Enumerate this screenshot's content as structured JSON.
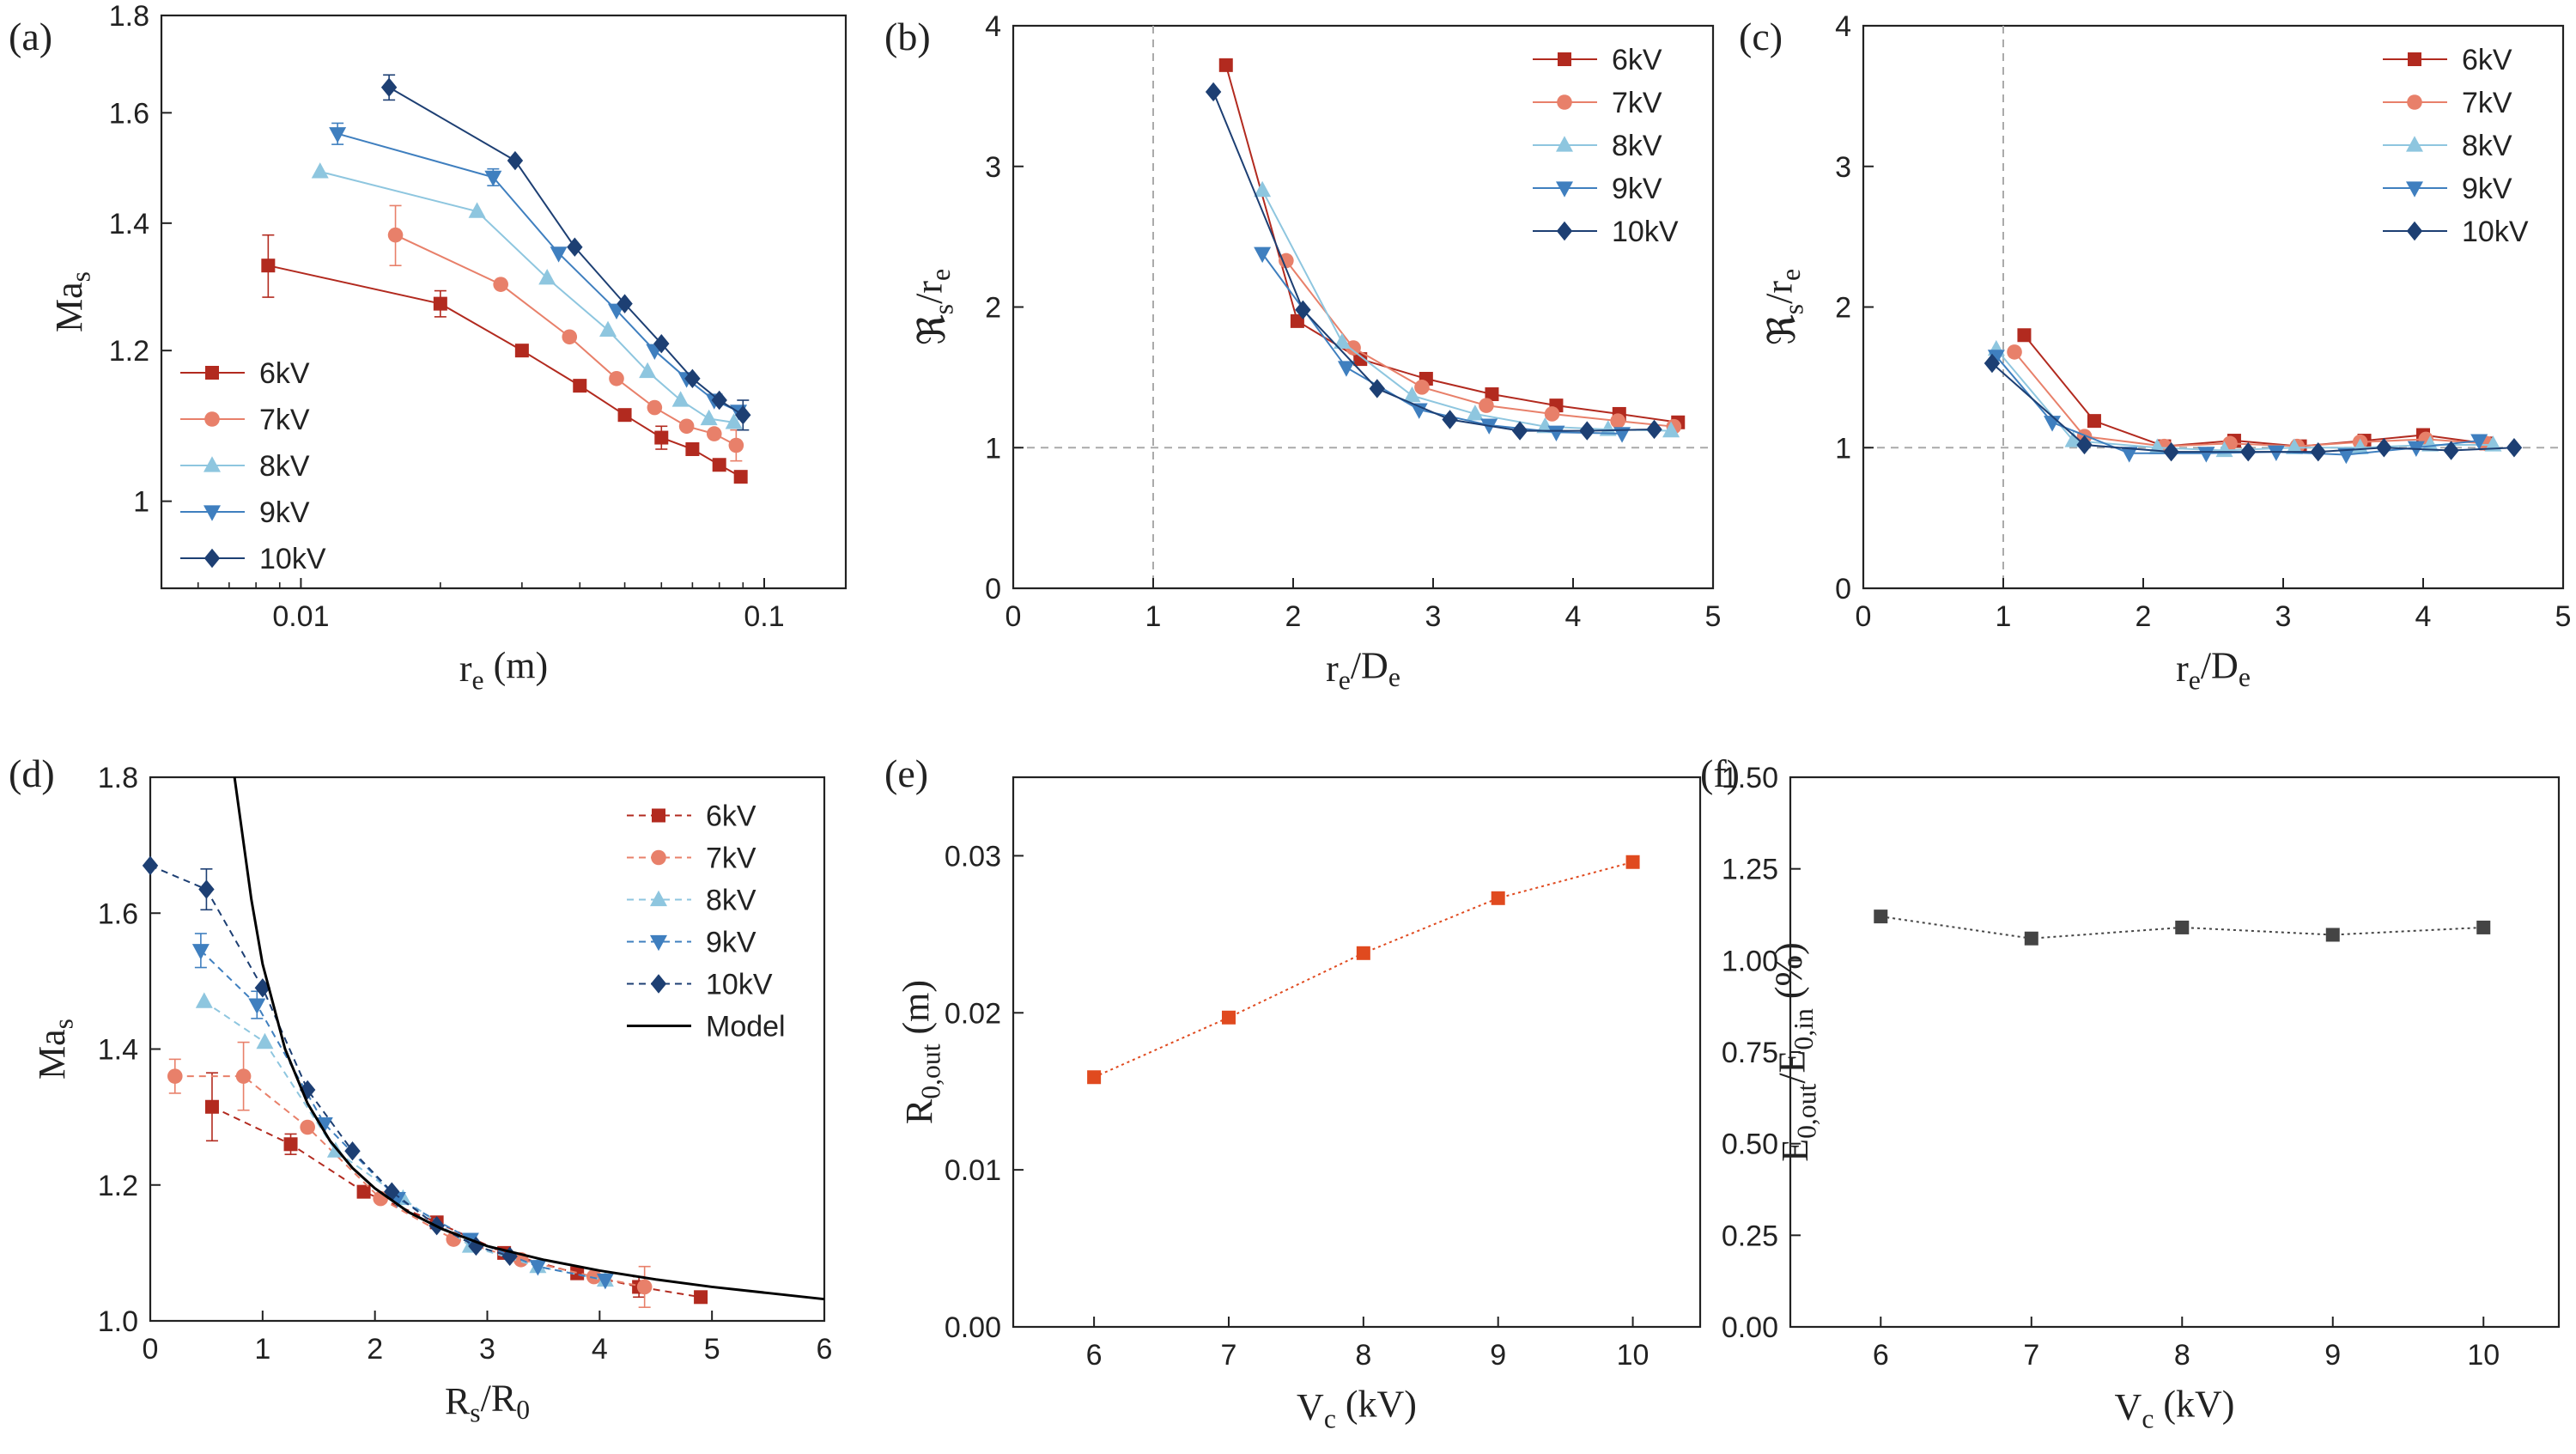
{
  "colors": {
    "6kV": "#b22a1f",
    "7kV": "#e8806a",
    "8kV": "#8ec6df",
    "9kV": "#3f7fbf",
    "10kV": "#1d3f73",
    "Model": "#000000",
    "E": "#e04a1f",
    "F": "#444444",
    "refline": "#aaaaaa"
  },
  "chart_data": [
    {
      "panel": "(a)",
      "type": "line",
      "xlabel": "r_e (m)",
      "ylabel": "Ma_s",
      "xscale": "log",
      "yscale": "log",
      "xlim": [
        0.005,
        0.15
      ],
      "ylim": [
        0.9,
        1.8
      ],
      "xticks": [
        0.01,
        0.1
      ],
      "xticklabels": [
        "0.01",
        "0.1"
      ],
      "yticks": [
        1.0,
        1.2,
        1.4,
        1.6,
        1.8
      ],
      "yticklabels": [
        "1",
        "1.2",
        "1.4",
        "1.6",
        "1.8"
      ],
      "legend": "bottom-left",
      "series": [
        {
          "name": "6kV",
          "marker": "square",
          "x": [
            0.0085,
            0.02,
            0.03,
            0.04,
            0.05,
            0.06,
            0.07,
            0.08,
            0.089
          ],
          "y": [
            1.33,
            1.27,
            1.2,
            1.15,
            1.11,
            1.08,
            1.065,
            1.045,
            1.03
          ],
          "err": [
            0.05,
            0.02,
            0,
            0,
            0,
            0.015,
            0,
            0,
            0
          ]
        },
        {
          "name": "7kV",
          "marker": "circle",
          "x": [
            0.016,
            0.027,
            0.038,
            0.048,
            0.058,
            0.068,
            0.078,
            0.087
          ],
          "y": [
            1.38,
            1.3,
            1.22,
            1.16,
            1.12,
            1.095,
            1.085,
            1.07
          ],
          "err": [
            0.05,
            0,
            0,
            0,
            0,
            0,
            0,
            0.02
          ]
        },
        {
          "name": "8kV",
          "marker": "triangle-up",
          "x": [
            0.011,
            0.024,
            0.034,
            0.046,
            0.056,
            0.066,
            0.076,
            0.086
          ],
          "y": [
            1.49,
            1.42,
            1.31,
            1.23,
            1.17,
            1.13,
            1.105,
            1.1
          ],
          "err": [
            0,
            0,
            0,
            0,
            0,
            0,
            0,
            0
          ]
        },
        {
          "name": "9kV",
          "marker": "triangle-down",
          "x": [
            0.012,
            0.026,
            0.036,
            0.048,
            0.058,
            0.068,
            0.078,
            0.088
          ],
          "y": [
            1.56,
            1.48,
            1.35,
            1.26,
            1.2,
            1.16,
            1.13,
            1.115
          ],
          "err": [
            0.02,
            0.015,
            0,
            0,
            0,
            0,
            0,
            0
          ]
        },
        {
          "name": "10kV",
          "marker": "diamond",
          "x": [
            0.0155,
            0.029,
            0.039,
            0.05,
            0.06,
            0.07,
            0.08,
            0.09
          ],
          "y": [
            1.65,
            1.51,
            1.36,
            1.27,
            1.21,
            1.16,
            1.13,
            1.11
          ],
          "err": [
            0.025,
            0,
            0,
            0,
            0,
            0,
            0,
            0.02
          ]
        }
      ]
    },
    {
      "panel": "(b)",
      "type": "line",
      "xlabel": "r_e/D_e",
      "ylabel": "ℜ_s/r_e",
      "xlim": [
        0,
        5
      ],
      "ylim": [
        0,
        4
      ],
      "xticks": [
        0,
        1,
        2,
        3,
        4,
        5
      ],
      "yticks": [
        0,
        1,
        2,
        3,
        4
      ],
      "reflines": {
        "x": 1,
        "y": 1
      },
      "legend": "top-right",
      "series": [
        {
          "name": "6kV",
          "marker": "square",
          "x": [
            1.52,
            2.03,
            2.48,
            2.95,
            3.42,
            3.88,
            4.33,
            4.75
          ],
          "y": [
            3.72,
            1.9,
            1.63,
            1.49,
            1.38,
            1.3,
            1.24,
            1.18
          ]
        },
        {
          "name": "7kV",
          "marker": "circle",
          "x": [
            1.95,
            2.43,
            2.92,
            3.38,
            3.85,
            4.32,
            4.72
          ],
          "y": [
            2.33,
            1.71,
            1.43,
            1.3,
            1.24,
            1.19,
            1.15
          ]
        },
        {
          "name": "8kV",
          "marker": "triangle-up",
          "x": [
            1.78,
            2.35,
            2.85,
            3.3,
            3.8,
            4.25,
            4.7
          ],
          "y": [
            2.83,
            1.75,
            1.37,
            1.24,
            1.15,
            1.13,
            1.12
          ]
        },
        {
          "name": "9kV",
          "marker": "triangle-down",
          "x": [
            1.78,
            2.38,
            2.9,
            3.4,
            3.88,
            4.35
          ],
          "y": [
            2.38,
            1.57,
            1.27,
            1.16,
            1.11,
            1.1
          ]
        },
        {
          "name": "10kV",
          "marker": "diamond",
          "x": [
            1.43,
            2.07,
            2.6,
            3.12,
            3.62,
            4.1,
            4.58
          ],
          "y": [
            3.53,
            1.98,
            1.42,
            1.2,
            1.12,
            1.12,
            1.13
          ]
        }
      ]
    },
    {
      "panel": "(c)",
      "type": "line",
      "xlabel": "r_e/D_e",
      "ylabel": "ℜ_s/r_e",
      "xlim": [
        0,
        5
      ],
      "ylim": [
        0,
        4
      ],
      "xticks": [
        0,
        1,
        2,
        3,
        4,
        5
      ],
      "yticks": [
        0,
        1,
        2,
        3,
        4
      ],
      "reflines": {
        "x": 1,
        "y": 1
      },
      "legend": "top-right",
      "series": [
        {
          "name": "6kV",
          "marker": "square",
          "x": [
            1.15,
            1.65,
            2.15,
            2.65,
            3.12,
            3.58,
            4.0,
            4.45
          ],
          "y": [
            1.8,
            1.19,
            1.01,
            1.05,
            1.01,
            1.05,
            1.09,
            1.03
          ]
        },
        {
          "name": "7kV",
          "marker": "circle",
          "x": [
            1.08,
            1.58,
            2.15,
            2.62,
            3.1,
            3.55,
            4.02,
            4.45
          ],
          "y": [
            1.68,
            1.08,
            1.01,
            1.03,
            1.01,
            1.04,
            1.06,
            1.03
          ]
        },
        {
          "name": "8kV",
          "marker": "triangle-up",
          "x": [
            0.95,
            1.5,
            2.1,
            2.58,
            3.08,
            3.55,
            4.05,
            4.5
          ],
          "y": [
            1.7,
            1.05,
            1.0,
            0.98,
            1.0,
            1.0,
            1.02,
            1.02
          ]
        },
        {
          "name": "9kV",
          "marker": "triangle-down",
          "x": [
            0.95,
            1.35,
            1.9,
            2.45,
            2.95,
            3.45,
            3.95,
            4.4
          ],
          "y": [
            1.65,
            1.18,
            0.96,
            0.96,
            0.97,
            0.95,
            1.0,
            1.05
          ]
        },
        {
          "name": "10kV",
          "marker": "diamond",
          "x": [
            0.92,
            1.58,
            2.2,
            2.75,
            3.25,
            3.72,
            4.2,
            4.65
          ],
          "y": [
            1.6,
            1.02,
            0.97,
            0.97,
            0.97,
            1.0,
            0.98,
            1.0
          ]
        }
      ]
    },
    {
      "panel": "(d)",
      "type": "line",
      "xlabel": "R_s/R_0",
      "ylabel": "Ma_s",
      "xlim": [
        0,
        6
      ],
      "ylim": [
        1.0,
        1.8
      ],
      "xticks": [
        0,
        1,
        2,
        3,
        4,
        5,
        6
      ],
      "yticks": [
        1.0,
        1.2,
        1.4,
        1.6,
        1.8
      ],
      "yticklabels": [
        "1.0",
        "1.2",
        "1.4",
        "1.6",
        "1.8"
      ],
      "legend": "top-right",
      "series": [
        {
          "name": "6kV",
          "marker": "square",
          "dashed": true,
          "x": [
            0.55,
            1.25,
            1.9,
            2.55,
            3.15,
            3.8,
            4.35,
            4.9
          ],
          "y": [
            1.315,
            1.26,
            1.19,
            1.145,
            1.1,
            1.07,
            1.05,
            1.035
          ],
          "err": [
            0.05,
            0.015,
            0,
            0,
            0,
            0,
            0.015,
            0
          ]
        },
        {
          "name": "7kV",
          "marker": "circle",
          "dashed": true,
          "x": [
            0.22,
            0.83,
            1.4,
            2.05,
            2.7,
            3.3,
            3.95,
            4.4
          ],
          "y": [
            1.36,
            1.36,
            1.285,
            1.18,
            1.12,
            1.09,
            1.065,
            1.05
          ],
          "err": [
            0.025,
            0.05,
            0,
            0,
            0,
            0,
            0,
            0.03
          ]
        },
        {
          "name": "8kV",
          "marker": "triangle-up",
          "dashed": true,
          "x": [
            0.48,
            1.02,
            1.65,
            2.25,
            2.85,
            3.45,
            4.05
          ],
          "y": [
            1.47,
            1.41,
            1.25,
            1.18,
            1.11,
            1.08,
            1.06
          ],
          "err": [
            0,
            0,
            0,
            0,
            0,
            0,
            0
          ]
        },
        {
          "name": "9kV",
          "marker": "triangle-down",
          "dashed": true,
          "x": [
            0.45,
            0.95,
            1.55,
            2.2,
            2.85,
            3.45,
            4.05
          ],
          "y": [
            1.545,
            1.465,
            1.29,
            1.18,
            1.12,
            1.08,
            1.06
          ],
          "err": [
            0.025,
            0.02,
            0,
            0,
            0,
            0,
            0
          ]
        },
        {
          "name": "10kV",
          "marker": "diamond",
          "dashed": true,
          "x": [
            0,
            0.5,
            1.0,
            1.4,
            1.8,
            2.15,
            2.55,
            2.9,
            3.2
          ],
          "y": [
            1.67,
            1.635,
            1.49,
            1.34,
            1.25,
            1.19,
            1.14,
            1.11,
            1.095
          ],
          "err": [
            0,
            0.03,
            0,
            0,
            0,
            0,
            0,
            0,
            0
          ]
        },
        {
          "name": "Model",
          "marker": "none",
          "curve": true,
          "x": [
            0.75,
            0.8,
            0.9,
            1.0,
            1.2,
            1.4,
            1.6,
            1.8,
            2.0,
            2.3,
            2.6,
            3.0,
            3.5,
            4.0,
            4.5,
            5.0,
            5.5,
            6.0
          ],
          "y": [
            1.8,
            1.74,
            1.62,
            1.525,
            1.4,
            1.32,
            1.265,
            1.225,
            1.195,
            1.16,
            1.135,
            1.11,
            1.09,
            1.074,
            1.061,
            1.05,
            1.041,
            1.032
          ]
        }
      ]
    },
    {
      "panel": "(e)",
      "type": "line",
      "xlabel": "V_c (kV)",
      "ylabel": "R_0,out (m)",
      "xlim": [
        5.4,
        10.5
      ],
      "ylim": [
        0,
        0.035
      ],
      "xticks": [
        6,
        7,
        8,
        9,
        10
      ],
      "yticks": [
        0.0,
        0.01,
        0.02,
        0.03
      ],
      "yticklabels": [
        "0.00",
        "0.01",
        "0.02",
        "0.03"
      ],
      "series": [
        {
          "name": "",
          "marker": "square",
          "dotted": true,
          "x": [
            6,
            7,
            8,
            9,
            10
          ],
          "y": [
            0.0159,
            0.0197,
            0.0238,
            0.0273,
            0.0296
          ]
        }
      ]
    },
    {
      "panel": "(f)",
      "type": "line",
      "xlabel": "V_c (kV)",
      "ylabel": "E_0,out/E_0,in (%)",
      "xlim": [
        5.4,
        10.5
      ],
      "ylim": [
        0,
        1.5
      ],
      "xticks": [
        6,
        7,
        8,
        9,
        10
      ],
      "yticks": [
        0.0,
        0.25,
        0.5,
        0.75,
        1.0,
        1.25,
        1.5
      ],
      "yticklabels": [
        "0.00",
        "0.25",
        "0.50",
        "0.75",
        "1.00",
        "1.25",
        "1.50"
      ],
      "series": [
        {
          "name": "",
          "marker": "square",
          "dotted": true,
          "x": [
            6,
            7,
            8,
            9,
            10
          ],
          "y": [
            1.12,
            1.06,
            1.09,
            1.07,
            1.09
          ]
        }
      ]
    }
  ]
}
